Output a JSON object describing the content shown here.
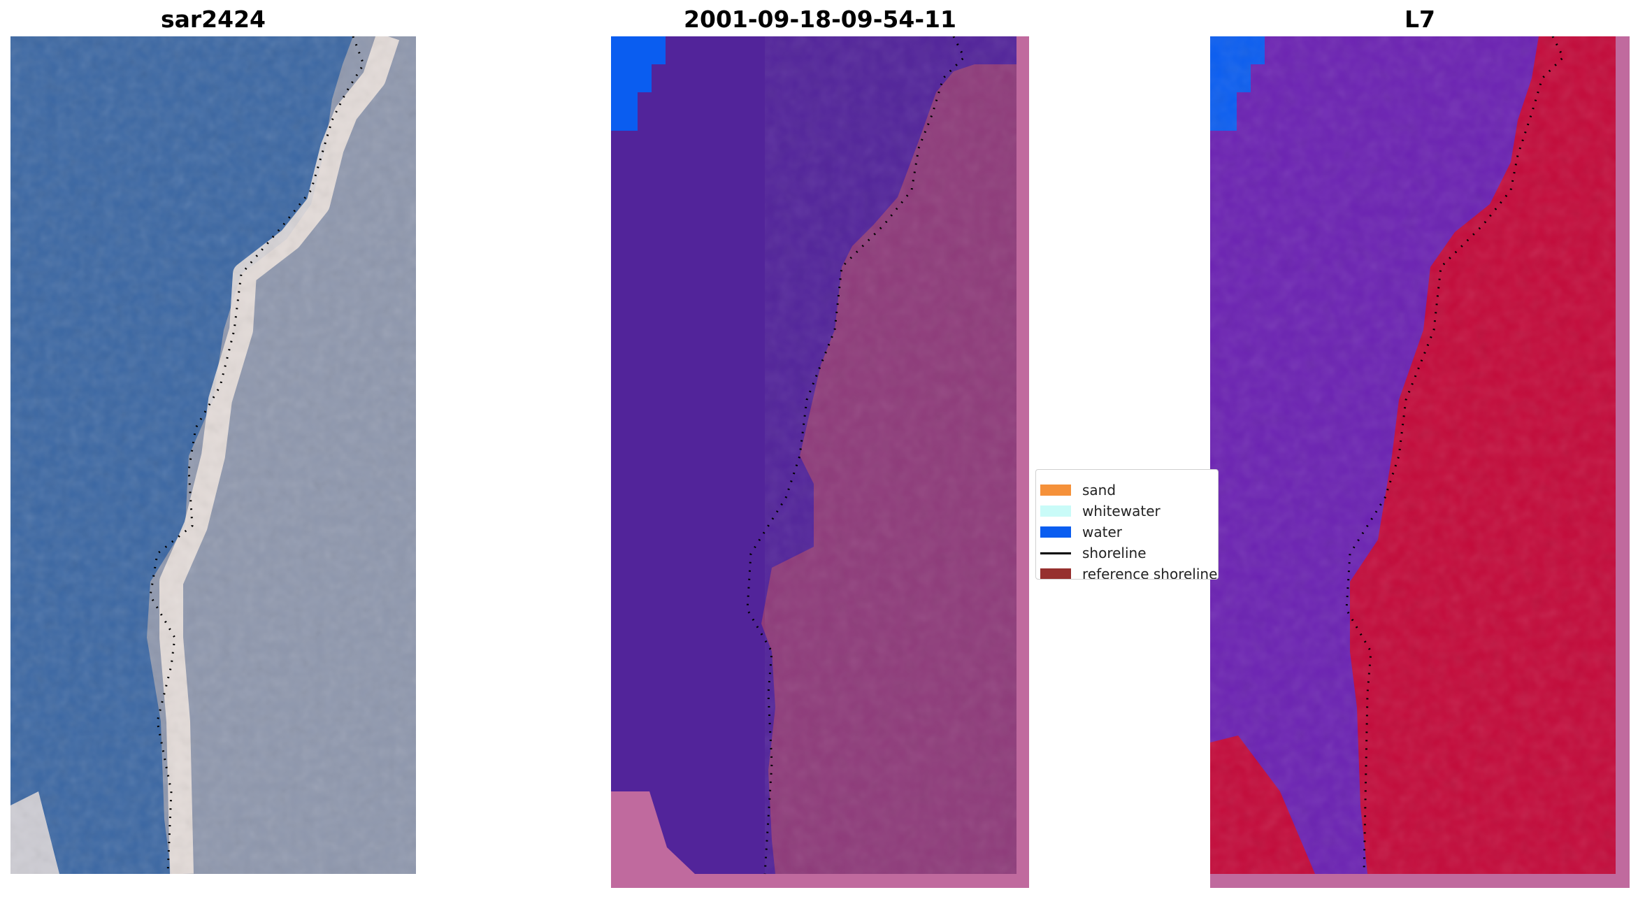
{
  "panels": [
    {
      "title": "sar2424"
    },
    {
      "title": "2001-09-18-09-54-11"
    },
    {
      "title": "L7"
    }
  ],
  "legend": {
    "items": [
      {
        "label": "sand",
        "color": "#f5913a",
        "kind": "patch"
      },
      {
        "label": "whitewater",
        "color": "#c9fbf8",
        "kind": "patch"
      },
      {
        "label": "water",
        "color": "#0a5df0",
        "kind": "patch"
      },
      {
        "label": "shoreline",
        "color": "#000000",
        "kind": "line"
      },
      {
        "label": "reference shoreline",
        "color": "#96302e",
        "kind": "patch"
      }
    ]
  },
  "colors": {
    "rgb_water": "#3b67a3",
    "rgb_land": "#8e97ad",
    "rgb_surf": "#f2e6df",
    "class_water": "#52249a",
    "class_land": "#8e3b7a",
    "class_border": "#c06a9e",
    "mndwi_water": "#6b22b2",
    "mndwi_land": "#c30a3a"
  }
}
